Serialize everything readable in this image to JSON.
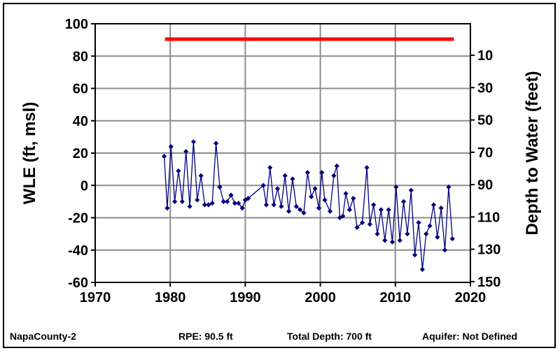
{
  "chart_data": {
    "type": "line",
    "ylabel_left": "WLE (ft, msl)",
    "ylabel_right": "Depth to Water (feet)",
    "xlim": [
      1970,
      2020
    ],
    "ylim": [
      -60,
      100
    ],
    "x_ticks": [
      1970,
      1980,
      1990,
      2000,
      2010,
      2020
    ],
    "y_ticks": [
      -60,
      -40,
      -20,
      0,
      20,
      40,
      60,
      80,
      100
    ],
    "right_ticks": [
      150,
      130,
      110,
      90,
      70,
      50,
      30,
      10
    ],
    "rpe_value": 90.5,
    "rpe_line": {
      "x": [
        1979.3,
        2017.8
      ],
      "y": [
        90.5,
        90.5
      ],
      "color": "#ff0000"
    },
    "grid": true,
    "series_color": "#000080",
    "series": [
      {
        "x": [
          1979.2,
          1979.6,
          1980.1,
          1980.6,
          1981.1,
          1981.6,
          1982.1,
          1982.6,
          1983.1,
          1983.6,
          1984.1,
          1984.6,
          1985.1,
          1985.6,
          1986.1,
          1986.6,
          1987.1,
          1987.6,
          1988.1,
          1988.6,
          1989.1,
          1989.6,
          1990.0,
          1990.4,
          1992.4,
          1992.8,
          1993.3,
          1993.8,
          1994.3,
          1994.8,
          1995.3,
          1995.8,
          1996.3,
          1996.8,
          1997.3,
          1997.8,
          1998.3,
          1998.8,
          1999.3,
          1999.8,
          2000.2,
          2000.6,
          2001.3,
          2001.8,
          2002.2,
          2002.6,
          2003.0,
          2003.4,
          2003.9,
          2004.4,
          2004.9,
          2005.6,
          2006.2,
          2006.6,
          2007.1,
          2007.6,
          2008.1,
          2008.6,
          2009.1,
          2009.6,
          2010.1,
          2010.6,
          2011.1,
          2011.6,
          2012.1,
          2012.6,
          2013.1,
          2013.6,
          2014.1,
          2014.6,
          2015.1,
          2015.6,
          2016.1,
          2016.6,
          2017.1,
          2017.6
        ],
        "y": [
          18,
          -14,
          24,
          -10,
          9,
          -10,
          21,
          -13,
          27,
          -9,
          6,
          -12,
          -12,
          -11,
          26,
          -1,
          -10,
          -10,
          -6,
          -11,
          -11,
          -14,
          -9,
          -8,
          0,
          -12,
          11,
          -12,
          -2,
          -13,
          6,
          -16,
          4,
          -13,
          -15,
          -17,
          8,
          -7,
          -2,
          -14,
          8,
          -9,
          -16,
          6,
          12,
          -20,
          -19,
          -5,
          -15,
          -8,
          -26,
          -23,
          11,
          -24,
          -12,
          -30,
          -15,
          -34,
          -15,
          -35,
          -1,
          -34,
          -10,
          -30,
          -3,
          -43,
          -23,
          -52,
          -30,
          -25,
          -12,
          -32,
          -14,
          -40,
          -1,
          -33
        ]
      }
    ]
  },
  "footer": {
    "site": "NapaCounty-2",
    "rpe": "RPE: 90.5 ft",
    "depth": "Total Depth: 700 ft",
    "aquifer": "Aquifer: Not Defined"
  }
}
